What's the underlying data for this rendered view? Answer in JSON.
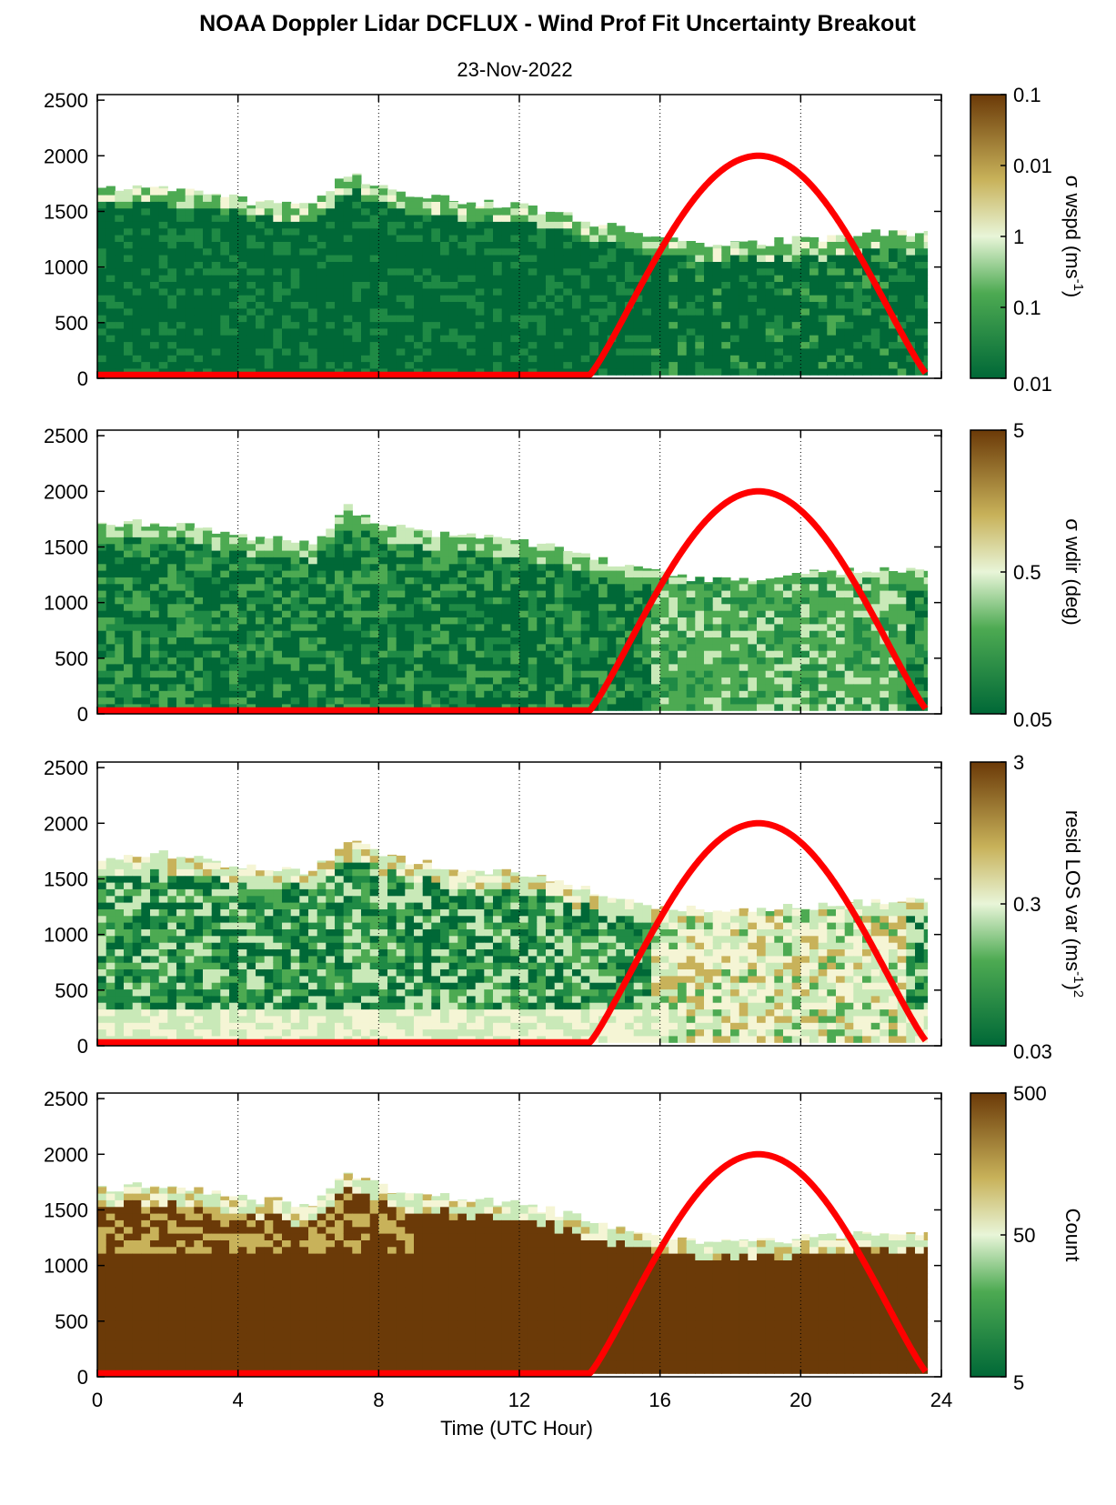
{
  "title": "NOAA Doppler Lidar DCFLUX - Wind Prof Fit Uncertainty Breakout",
  "date": "23-Nov-2022",
  "xlabel": "Time (UTC Hour)",
  "x_ticks": [
    "0",
    "4",
    "8",
    "12",
    "16",
    "20",
    "24"
  ],
  "y_ticks": [
    "0",
    "500",
    "1000",
    "1500",
    "2000",
    "2500"
  ],
  "colors": {
    "dark_green": "#006837",
    "mid_green": "#4daa52",
    "light_green": "#c9e9b8",
    "pale": "#f5f5d5",
    "tan": "#c8b25a",
    "brown": "#6b3a08",
    "sun_curve": "#ff0000"
  },
  "colorbars": [
    {
      "label": "σ wspd (ms",
      "label_sup": "-1",
      "label_end": ")",
      "ticks": [
        "0.1",
        "0.01",
        "1",
        "0.1",
        "0.01"
      ]
    },
    {
      "label": "σ wdir (deg)",
      "ticks": [
        "5",
        "0.5",
        "0.05"
      ]
    },
    {
      "label": "resid LOS var (ms",
      "label_sup": "-1",
      "label_end": ")",
      "label_sup2": "2",
      "ticks": [
        "3",
        "0.3",
        "0.03"
      ]
    },
    {
      "label": "Count",
      "ticks": [
        "500",
        "50",
        "5"
      ]
    }
  ],
  "chart_data": [
    {
      "type": "heatmap",
      "title": "",
      "xlabel": "",
      "ylabel": "",
      "xlim": [
        0,
        24
      ],
      "ylim": [
        0,
        2550
      ],
      "top_height_profile": {
        "x": [
          0,
          2,
          4,
          6,
          7,
          8,
          10,
          12,
          14,
          16,
          18,
          20,
          22,
          23.5
        ],
        "y": [
          1700,
          1720,
          1600,
          1550,
          1850,
          1700,
          1600,
          1550,
          1400,
          1250,
          1200,
          1250,
          1300,
          1300
        ]
      },
      "sun_elevation_curve": {
        "x": [
          0,
          14,
          14.3,
          16,
          18.7,
          21.5,
          23.3,
          23.6
        ],
        "y": [
          30,
          30,
          60,
          1200,
          2000,
          1200,
          60,
          30
        ]
      }
    },
    {
      "type": "heatmap",
      "xlim": [
        0,
        24
      ],
      "ylim": [
        0,
        2550
      ],
      "top_height_profile": {
        "x": [
          0,
          2,
          4,
          6,
          7,
          8,
          10,
          12,
          14,
          16,
          18,
          20,
          22,
          23.5
        ],
        "y": [
          1700,
          1720,
          1600,
          1550,
          1850,
          1700,
          1600,
          1550,
          1400,
          1250,
          1200,
          1250,
          1300,
          1300
        ]
      },
      "sun_elevation_curve": {
        "x": [
          0,
          14,
          14.3,
          16,
          18.7,
          21.5,
          23.3,
          23.6
        ],
        "y": [
          30,
          30,
          60,
          1200,
          2000,
          1200,
          60,
          30
        ]
      }
    },
    {
      "type": "heatmap",
      "xlim": [
        0,
        24
      ],
      "ylim": [
        0,
        2550
      ],
      "top_height_profile": {
        "x": [
          0,
          2,
          4,
          6,
          7,
          8,
          10,
          12,
          14,
          16,
          18,
          20,
          22,
          23.5
        ],
        "y": [
          1700,
          1720,
          1600,
          1550,
          1850,
          1700,
          1600,
          1550,
          1400,
          1250,
          1200,
          1250,
          1300,
          1300
        ]
      },
      "sun_elevation_curve": {
        "x": [
          0,
          14,
          14.3,
          16,
          18.7,
          21.5,
          23.3,
          23.6
        ],
        "y": [
          30,
          30,
          60,
          1200,
          2000,
          1200,
          60,
          30
        ]
      }
    },
    {
      "type": "heatmap",
      "xlim": [
        0,
        24
      ],
      "ylim": [
        0,
        2550
      ],
      "top_height_profile": {
        "x": [
          0,
          2,
          4,
          6,
          7,
          8,
          10,
          12,
          14,
          16,
          18,
          20,
          22,
          23.5
        ],
        "y": [
          1700,
          1720,
          1600,
          1550,
          1850,
          1700,
          1600,
          1550,
          1400,
          1250,
          1200,
          1250,
          1300,
          1300
        ]
      },
      "sun_elevation_curve": {
        "x": [
          0,
          14,
          14.3,
          16,
          18.7,
          21.5,
          23.3,
          23.6
        ],
        "y": [
          30,
          30,
          60,
          1200,
          2000,
          1200,
          60,
          30
        ]
      }
    }
  ]
}
